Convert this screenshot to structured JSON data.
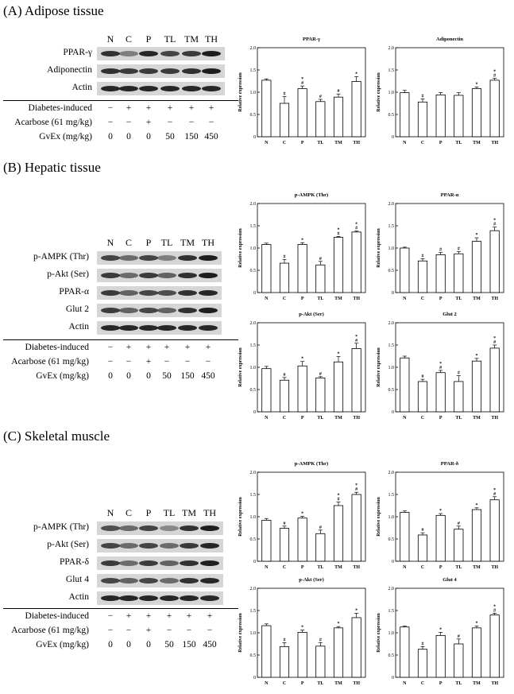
{
  "panels": [
    {
      "title": "(A) Adipose tissue",
      "lanes": [
        "N",
        "C",
        "P",
        "TL",
        "TM",
        "TH"
      ],
      "blots": [
        {
          "label": "PPAR-γ",
          "intensity": [
            0.85,
            0.45,
            0.9,
            0.75,
            0.8,
            0.95
          ]
        },
        {
          "label": "Adiponectin",
          "intensity": [
            0.85,
            0.8,
            0.8,
            0.8,
            0.85,
            0.95
          ]
        },
        {
          "label": "Actin",
          "intensity": [
            0.9,
            0.9,
            0.9,
            0.9,
            0.9,
            0.9
          ]
        }
      ],
      "treatments": [
        {
          "label": "Diabetes-induced",
          "values": [
            "−",
            "+",
            "+",
            "+",
            "+",
            "+"
          ]
        },
        {
          "label": "Acarbose (61 mg/kg)",
          "values": [
            "−",
            "−",
            "+",
            "−",
            "−",
            "−"
          ]
        },
        {
          "label": "GvEx (mg/kg)",
          "values": [
            "0",
            "0",
            "0",
            "50",
            "150",
            "450"
          ]
        }
      ]
    },
    {
      "title": "(B) Hepatic tissue",
      "lanes": [
        "N",
        "C",
        "P",
        "TL",
        "TM",
        "TH"
      ],
      "blots": [
        {
          "label": "p-AMPK (Thr)",
          "intensity": [
            0.75,
            0.55,
            0.75,
            0.45,
            0.85,
            0.95
          ]
        },
        {
          "label": "p-Akt (Ser)",
          "intensity": [
            0.8,
            0.55,
            0.8,
            0.6,
            0.85,
            0.95
          ]
        },
        {
          "label": "PPAR-α",
          "intensity": [
            0.8,
            0.6,
            0.75,
            0.7,
            0.85,
            0.9
          ]
        },
        {
          "label": "Glut 2",
          "intensity": [
            0.8,
            0.6,
            0.75,
            0.6,
            0.85,
            0.95
          ]
        },
        {
          "label": "Actin",
          "intensity": [
            0.9,
            0.9,
            0.9,
            0.9,
            0.9,
            0.9
          ]
        }
      ],
      "treatments": [
        {
          "label": "Diabetes-induced",
          "values": [
            "−",
            "+",
            "+",
            "+",
            "+",
            "+"
          ]
        },
        {
          "label": "Acarbose (61 mg/kg)",
          "values": [
            "−",
            "−",
            "+",
            "−",
            "−",
            "−"
          ]
        },
        {
          "label": "GvEx (mg/kg)",
          "values": [
            "0",
            "0",
            "0",
            "50",
            "150",
            "450"
          ]
        }
      ]
    },
    {
      "title": "(C) Skeletal muscle",
      "lanes": [
        "N",
        "C",
        "P",
        "TL",
        "TM",
        "TH"
      ],
      "blots": [
        {
          "label": "p-AMPK (Thr)",
          "intensity": [
            0.7,
            0.55,
            0.75,
            0.4,
            0.85,
            0.95
          ]
        },
        {
          "label": "p-Akt (Ser)",
          "intensity": [
            0.75,
            0.55,
            0.75,
            0.55,
            0.8,
            0.9
          ]
        },
        {
          "label": "PPAR-δ",
          "intensity": [
            0.8,
            0.55,
            0.8,
            0.6,
            0.85,
            0.95
          ]
        },
        {
          "label": "Glut 4",
          "intensity": [
            0.75,
            0.6,
            0.75,
            0.55,
            0.85,
            0.9
          ]
        },
        {
          "label": "Actin",
          "intensity": [
            0.9,
            0.9,
            0.9,
            0.9,
            0.9,
            0.9
          ]
        }
      ],
      "treatments": [
        {
          "label": "Diabetes-induced",
          "values": [
            "−",
            "+",
            "+",
            "+",
            "+",
            "+"
          ]
        },
        {
          "label": "Acarbose (61 mg/kg)",
          "values": [
            "−",
            "−",
            "+",
            "−",
            "−",
            "−"
          ]
        },
        {
          "label": "GvEx (mg/kg)",
          "values": [
            "0",
            "0",
            "0",
            "50",
            "150",
            "450"
          ]
        }
      ]
    }
  ],
  "chart_data": [
    {
      "type": "bar",
      "panel": "A",
      "title": "PPAR-γ",
      "ylabel": "Relative expression",
      "ylim": [
        0,
        2.0
      ],
      "yticks": [
        "0",
        "0.5",
        "1.0",
        "1.5",
        "2.0"
      ],
      "categories": [
        "N",
        "C",
        "P",
        "TL",
        "TM",
        "TH"
      ],
      "values": [
        1.27,
        0.75,
        1.08,
        0.79,
        0.89,
        1.24
      ],
      "errors": [
        0.03,
        0.15,
        0.06,
        0.05,
        0.07,
        0.11
      ],
      "annotations": [
        "",
        "#",
        "*\n#",
        "#",
        "#",
        "*"
      ]
    },
    {
      "type": "bar",
      "panel": "A",
      "title": "Adiponectin",
      "ylabel": "Relative expression",
      "ylim": [
        0,
        2.0
      ],
      "yticks": [
        "0",
        "0.5",
        "1.0",
        "1.5",
        "2.0"
      ],
      "categories": [
        "N",
        "C",
        "P",
        "TL",
        "TM",
        "TH"
      ],
      "values": [
        0.99,
        0.78,
        0.94,
        0.93,
        1.08,
        1.27
      ],
      "errors": [
        0.05,
        0.07,
        0.05,
        0.06,
        0.04,
        0.04
      ],
      "annotations": [
        "",
        "#",
        "",
        "",
        "*",
        "*\n#"
      ]
    },
    {
      "type": "bar",
      "panel": "B",
      "title": "p-AMPK (Thr)",
      "ylabel": "Relative expression",
      "ylim": [
        0,
        2.0
      ],
      "yticks": [
        "0",
        "0.5",
        "1.0",
        "1.5",
        "2.0"
      ],
      "categories": [
        "N",
        "C",
        "P",
        "TL",
        "TM",
        "TH"
      ],
      "values": [
        1.08,
        0.66,
        1.08,
        0.62,
        1.24,
        1.36
      ],
      "errors": [
        0.03,
        0.08,
        0.04,
        0.08,
        0.02,
        0.02
      ],
      "annotations": [
        "",
        "#",
        "*",
        "#",
        "*\n#",
        "*\n#"
      ]
    },
    {
      "type": "bar",
      "panel": "B",
      "title": "PPAR-α",
      "ylabel": "Relative expression",
      "ylim": [
        0,
        2.0
      ],
      "yticks": [
        "0",
        "0.5",
        "1.0",
        "1.5",
        "2.0"
      ],
      "categories": [
        "N",
        "C",
        "P",
        "TL",
        "TM",
        "TH"
      ],
      "values": [
        1.0,
        0.71,
        0.85,
        0.87,
        1.15,
        1.39
      ],
      "errors": [
        0.02,
        0.05,
        0.05,
        0.05,
        0.08,
        0.08
      ],
      "annotations": [
        "",
        "#",
        "#",
        "#",
        "*",
        "*\n#"
      ]
    },
    {
      "type": "bar",
      "panel": "B",
      "title": "p-Akt (Ser)",
      "ylabel": "Relative expression",
      "ylim": [
        0,
        2.0
      ],
      "yticks": [
        "0",
        "0.5",
        "1.0",
        "1.5",
        "2.0"
      ],
      "categories": [
        "N",
        "C",
        "P",
        "TL",
        "TM",
        "TH"
      ],
      "values": [
        0.97,
        0.71,
        1.03,
        0.76,
        1.12,
        1.42
      ],
      "errors": [
        0.05,
        0.06,
        0.1,
        0.03,
        0.12,
        0.12
      ],
      "annotations": [
        "",
        "#",
        "*",
        "#",
        "*",
        "*\n#"
      ]
    },
    {
      "type": "bar",
      "panel": "B",
      "title": "Glut 2",
      "ylabel": "Relative expression",
      "ylim": [
        0,
        2.0
      ],
      "yticks": [
        "0",
        "0.5",
        "1.0",
        "1.5",
        "2.0"
      ],
      "categories": [
        "N",
        "C",
        "P",
        "TL",
        "TM",
        "TH"
      ],
      "values": [
        1.21,
        0.68,
        0.88,
        0.68,
        1.14,
        1.43
      ],
      "errors": [
        0.04,
        0.05,
        0.05,
        0.13,
        0.06,
        0.07
      ],
      "annotations": [
        "",
        "#",
        "*\n#",
        "#",
        "*",
        "*\n#"
      ]
    },
    {
      "type": "bar",
      "panel": "C",
      "title": "p-AMPK (Thr)",
      "ylabel": "Relative expression",
      "ylim": [
        0,
        2.0
      ],
      "yticks": [
        "0",
        "0.5",
        "1.0",
        "1.5",
        "2.0"
      ],
      "categories": [
        "N",
        "C",
        "P",
        "TL",
        "TM",
        "TH"
      ],
      "values": [
        0.92,
        0.74,
        0.97,
        0.62,
        1.25,
        1.5
      ],
      "errors": [
        0.04,
        0.05,
        0.04,
        0.08,
        0.08,
        0.05
      ],
      "annotations": [
        "",
        "#",
        "*",
        "#",
        "*\n#",
        "*\n#"
      ]
    },
    {
      "type": "bar",
      "panel": "C",
      "title": "PPAR-δ",
      "ylabel": "Relative expression",
      "ylim": [
        0,
        2.0
      ],
      "yticks": [
        "0",
        "0.5",
        "1.0",
        "1.5",
        "2.0"
      ],
      "categories": [
        "N",
        "C",
        "P",
        "TL",
        "TM",
        "TH"
      ],
      "values": [
        1.1,
        0.59,
        1.03,
        0.72,
        1.16,
        1.38
      ],
      "errors": [
        0.03,
        0.05,
        0.04,
        0.07,
        0.04,
        0.07
      ],
      "annotations": [
        "",
        "#",
        "*",
        "#",
        "*",
        "*\n#"
      ]
    },
    {
      "type": "bar",
      "panel": "C",
      "title": "p-Akt (Ser)",
      "ylabel": "Relative expression",
      "ylim": [
        0,
        2.0
      ],
      "yticks": [
        "0",
        "0.5",
        "1.0",
        "1.5",
        "2.0"
      ],
      "categories": [
        "N",
        "C",
        "P",
        "TL",
        "TM",
        "TH"
      ],
      "values": [
        1.16,
        0.69,
        1.01,
        0.7,
        1.11,
        1.34
      ],
      "errors": [
        0.04,
        0.09,
        0.05,
        0.08,
        0.03,
        0.1
      ],
      "annotations": [
        "",
        "#",
        "*",
        "#",
        "*",
        "*"
      ]
    },
    {
      "type": "bar",
      "panel": "C",
      "title": "Glut 4",
      "ylabel": "Relative expression",
      "ylim": [
        0,
        2.0
      ],
      "yticks": [
        "0",
        "0.5",
        "1.0",
        "1.5",
        "2.0"
      ],
      "categories": [
        "N",
        "C",
        "P",
        "TL",
        "TM",
        "TH"
      ],
      "values": [
        1.13,
        0.63,
        0.94,
        0.75,
        1.11,
        1.4
      ],
      "errors": [
        0.02,
        0.06,
        0.07,
        0.11,
        0.04,
        0.04
      ],
      "annotations": [
        "",
        "#",
        "*",
        "#",
        "*",
        "*\n#"
      ]
    }
  ]
}
